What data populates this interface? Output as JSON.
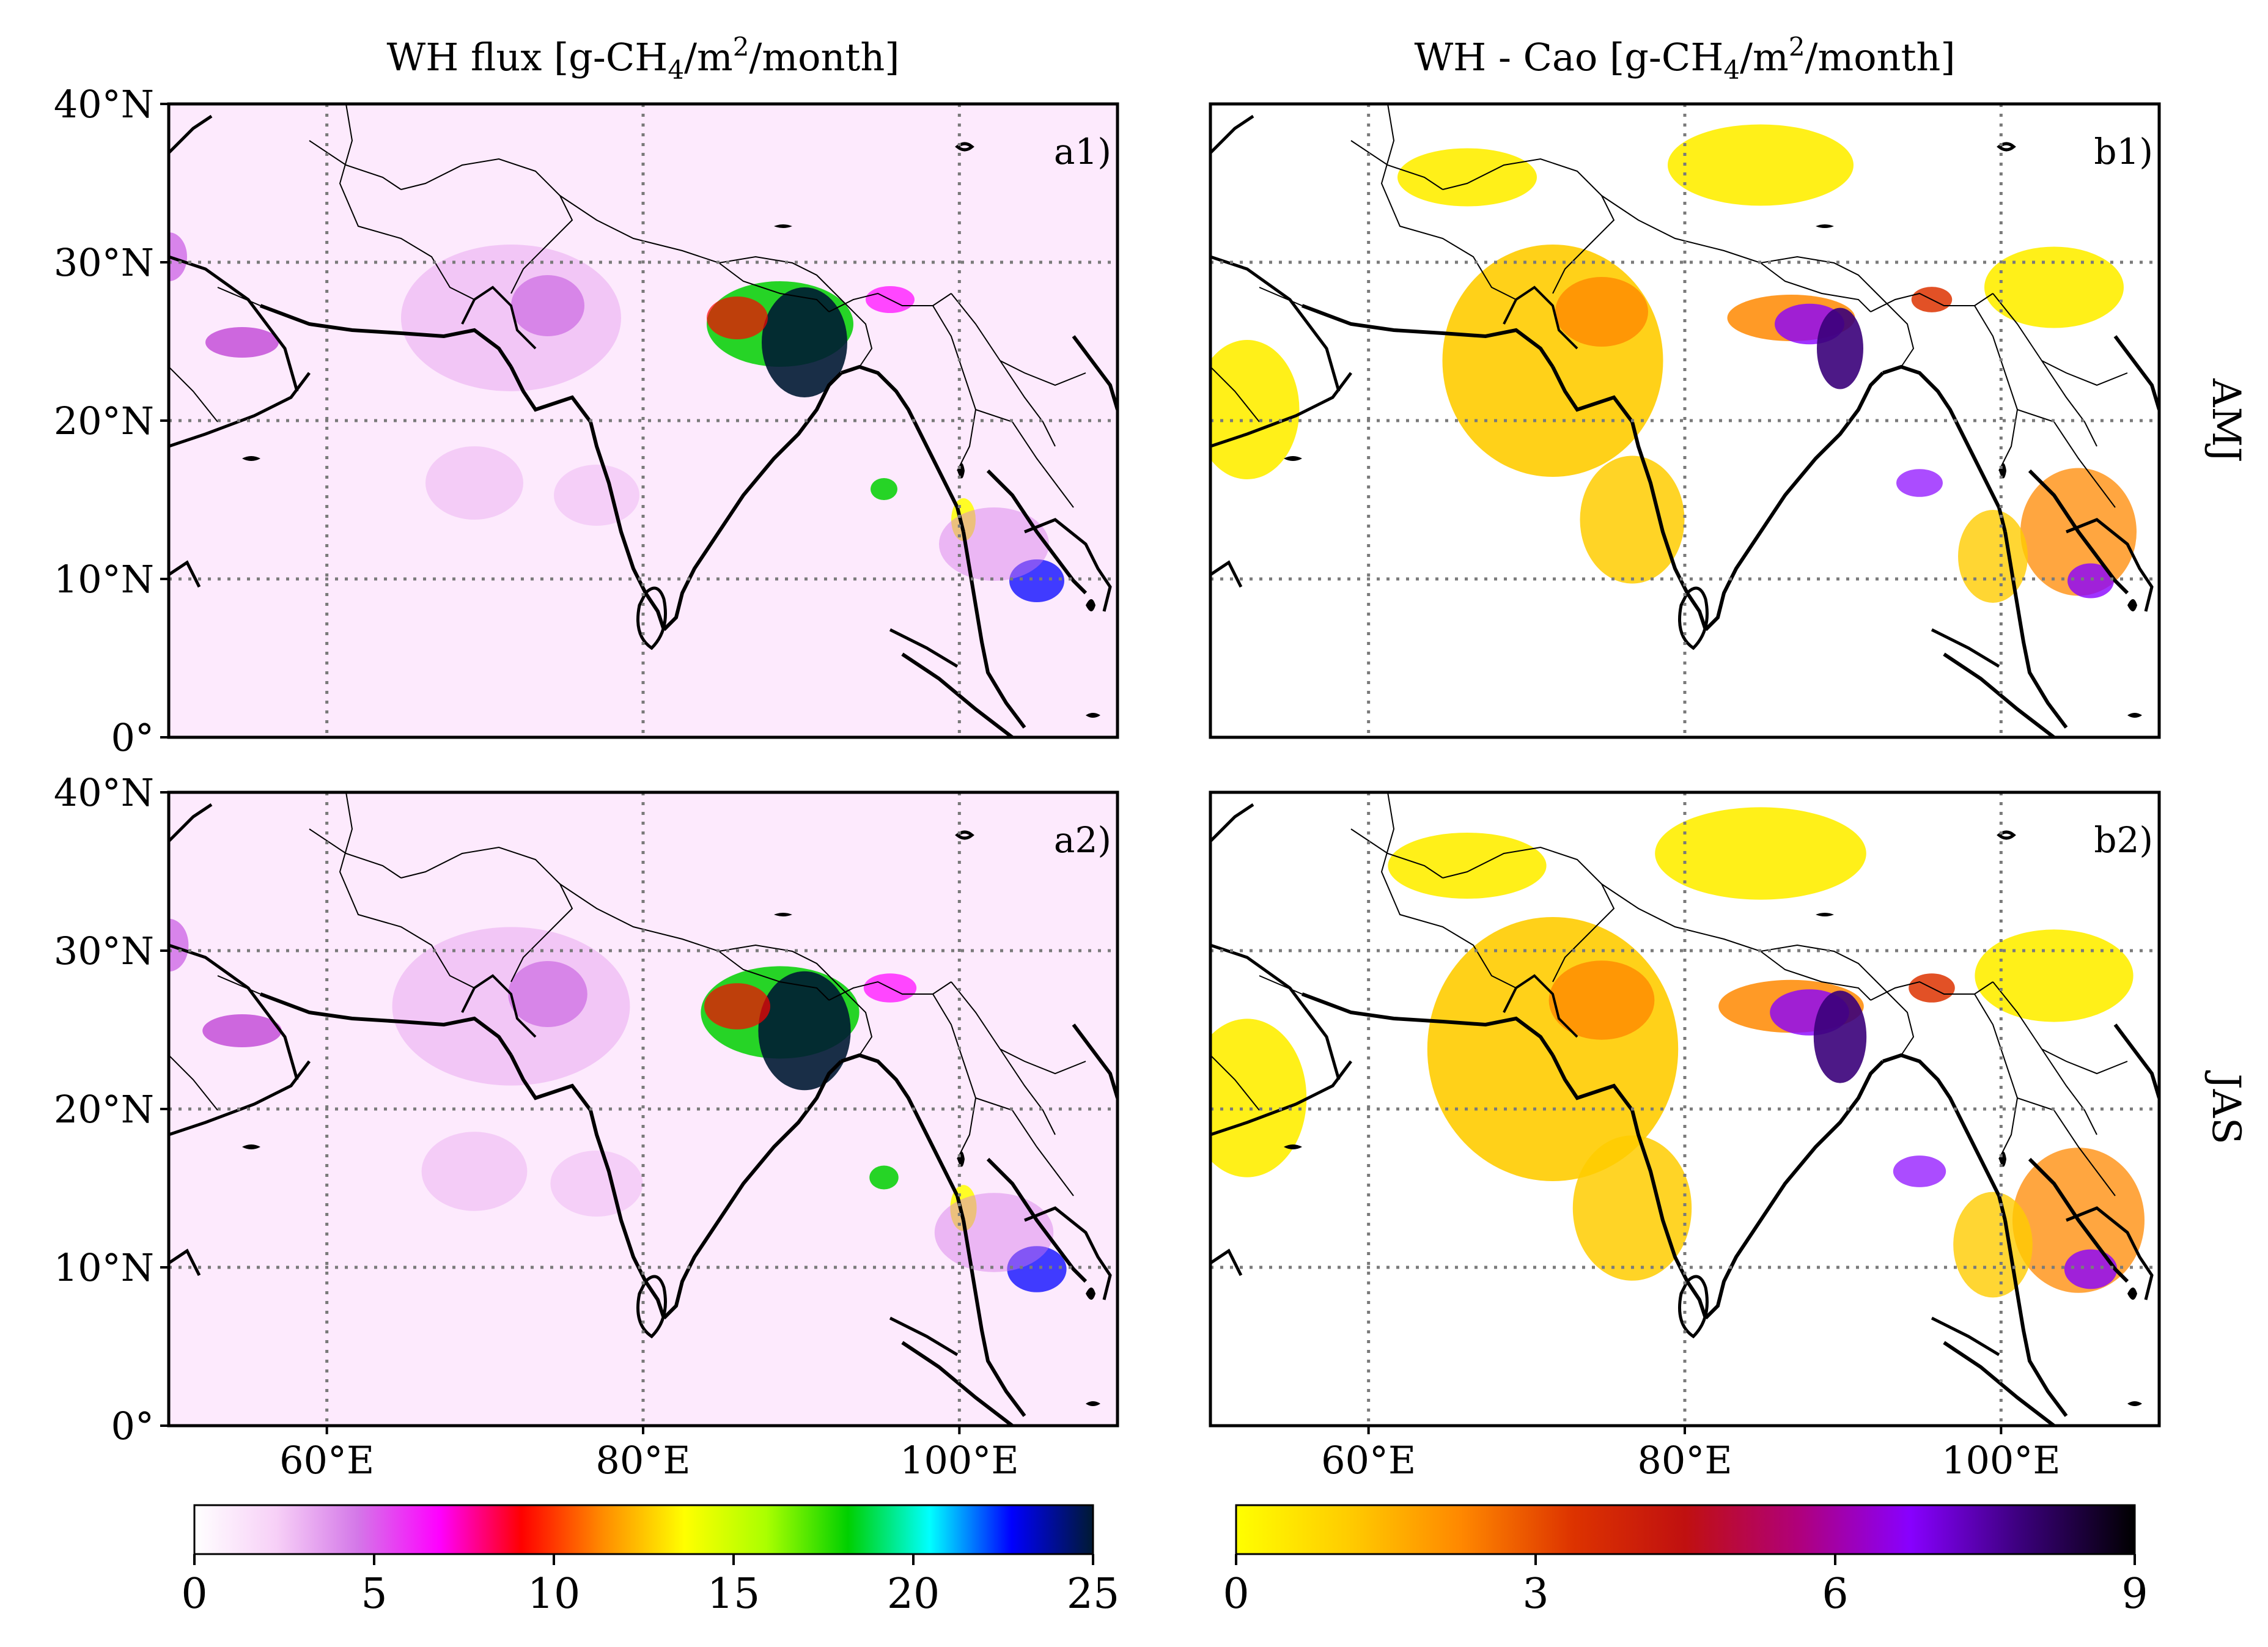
{
  "columns": {
    "left": {
      "title_prefix": "WH flux [g-CH",
      "title_sub1": "4",
      "title_mid": "/m",
      "title_sup": "2",
      "title_suffix": "/month]"
    },
    "right": {
      "title_prefix": "WH - Cao [g-CH",
      "title_sub1": "4",
      "title_mid": "/m",
      "title_sup": "2",
      "title_suffix": "/month]"
    }
  },
  "rows": {
    "top": "AMJ",
    "bottom": "JAS"
  },
  "panels": {
    "a1": "a1)",
    "b1": "b1)",
    "a2": "a2)",
    "b2": "b2)"
  },
  "axes": {
    "lat_ticks": [
      "40°N",
      "30°N",
      "20°N",
      "10°N",
      "0°"
    ],
    "lon_ticks": [
      "60°E",
      "80°E",
      "100°E"
    ],
    "lat_values": [
      40,
      30,
      20,
      10,
      0
    ],
    "lon_values": [
      60,
      80,
      100
    ],
    "lon_range": [
      50,
      110
    ],
    "lat_range": [
      0,
      40
    ]
  },
  "colorbars": {
    "left": {
      "ticks": [
        "0",
        "5",
        "10",
        "15",
        "20",
        "25"
      ],
      "min": 0,
      "max": 25
    },
    "right": {
      "ticks": [
        "0",
        "3",
        "6",
        "9"
      ],
      "min": 0,
      "max": 9
    }
  },
  "colors": {
    "flux_scale": [
      "#ffffff",
      "#f7d0f7",
      "#d477e8",
      "#ff00ff",
      "#ff0000",
      "#ff8c00",
      "#ffff00",
      "#aaff00",
      "#00d000",
      "#00ffff",
      "#0000ff",
      "#001a33"
    ],
    "diff_scale": [
      "#ffff00",
      "#ffcc00",
      "#ff8800",
      "#dd3300",
      "#c01010",
      "#b0007a",
      "#8800ff",
      "#3a007a",
      "#000000"
    ],
    "flux_background": "#fdeafd",
    "gridline": "#7a7a7a"
  }
}
